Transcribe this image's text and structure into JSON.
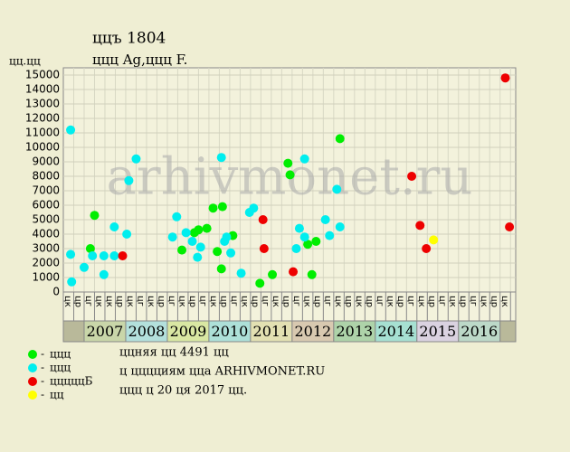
{
  "chart_data": {
    "type": "scatter",
    "title": "ццъ 1804",
    "subtitle": "ццц Ag,ццц F.",
    "y_label": "цц.цц",
    "watermark": "arhivmonet.ru",
    "ylim": [
      0,
      15500
    ],
    "yticks": [
      0,
      1000,
      2000,
      3000,
      4000,
      5000,
      6000,
      7000,
      8000,
      9000,
      10000,
      11000,
      12000,
      13000,
      14000,
      15000
    ],
    "xlim": [
      0,
      43.5
    ],
    "grid": true,
    "columns": [
      "цк",
      "цр",
      "цг",
      "цк",
      "цк",
      "цр",
      "цк",
      "цг",
      "цк",
      "цр",
      "цг",
      "цк",
      "цр",
      "цг",
      "цк",
      "цр",
      "цг",
      "цк",
      "цр",
      "цг",
      "цк",
      "цр",
      "цг",
      "цк",
      "цр",
      "цг",
      "цк",
      "цр",
      "цк",
      "цр",
      "цг",
      "цк",
      "цр",
      "цг",
      "цк",
      "цр",
      "цг",
      "цк",
      "цр",
      "цг",
      "цк",
      "цр",
      "цк"
    ],
    "years": [
      {
        "label": "2007",
        "color": "#c9d6a9"
      },
      {
        "label": "2008",
        "color": "#b3e0dc"
      },
      {
        "label": "2009",
        "color": "#d9e7a3"
      },
      {
        "label": "2010",
        "color": "#ade0d8"
      },
      {
        "label": "2011",
        "color": "#e2e0b2"
      },
      {
        "label": "2012",
        "color": "#d8c9b0"
      },
      {
        "label": "2013",
        "color": "#aed3a9"
      },
      {
        "label": "2014",
        "color": "#a6e0d2"
      },
      {
        "label": "2015",
        "color": "#dad2e0"
      },
      {
        "label": "2016",
        "color": "#bcd9c8"
      }
    ],
    "series": [
      {
        "name": "ццц",
        "color": "#00ee00",
        "x": [
          2.6,
          3.0,
          11.4,
          12.6,
          13.0,
          13.8,
          14.4,
          14.8,
          15.3,
          15.2,
          16.3,
          18.9,
          20.1,
          21.6,
          21.8,
          23.5,
          23.9,
          24.3,
          26.6
        ],
        "values": [
          3000,
          5300,
          2900,
          4100,
          4300,
          4400,
          5800,
          2800,
          5900,
          1600,
          3900,
          600,
          1200,
          8900,
          8100,
          3300,
          1200,
          3500,
          10600
        ]
      },
      {
        "name": "ццц",
        "color": "#00eeee",
        "x": [
          0.7,
          0.8,
          0.7,
          2.0,
          2.8,
          3.9,
          3.9,
          4.9,
          4.9,
          6.1,
          6.3,
          7.0,
          10.5,
          10.9,
          11.8,
          12.4,
          12.9,
          13.2,
          15.2,
          15.5,
          15.7,
          16.1,
          17.1,
          17.9,
          18.3,
          22.4,
          22.7,
          23.2,
          23.2,
          25.2,
          25.6,
          26.3,
          26.6
        ],
        "values": [
          11200,
          700,
          2600,
          1700,
          2500,
          1200,
          2500,
          4500,
          2500,
          4000,
          7700,
          9200,
          3800,
          5200,
          4100,
          3500,
          2400,
          3100,
          9300,
          3500,
          3800,
          2700,
          1300,
          5500,
          5800,
          3000,
          4400,
          9200,
          3800,
          5000,
          3900,
          7100,
          4500
        ]
      },
      {
        "name": "цццццБ",
        "color": "#ee0000",
        "x": [
          5.7,
          19.2,
          19.3,
          22.1,
          33.5,
          34.3,
          34.9,
          42.5,
          42.9
        ],
        "values": [
          2500,
          5000,
          3000,
          1400,
          8000,
          4600,
          3000,
          14800,
          4500
        ]
      },
      {
        "name": "цц",
        "color": "#ffff00",
        "x": [
          35.6
        ],
        "values": [
          3600
        ]
      }
    ],
    "notes": [
      "ццняя цц 4491 цц",
      "ц цццциям ццa ARHIVMONET.RU",
      "ццц ц 20 ця 2017 цц."
    ]
  }
}
